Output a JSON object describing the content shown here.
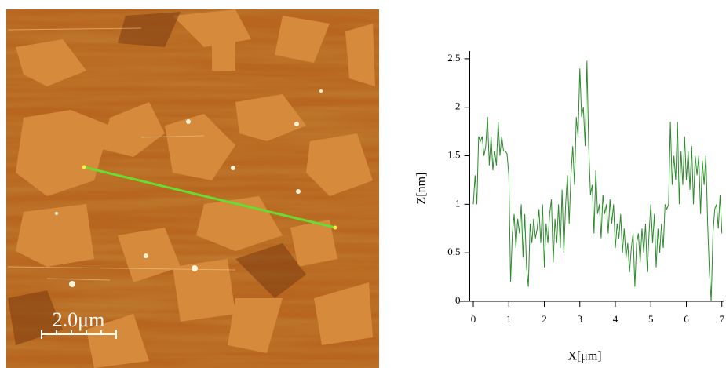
{
  "image": {
    "scale_bar": "2.0μm"
  },
  "chart_data": {
    "type": "line",
    "x_label": "X[μm]",
    "y_label": "Z[nm]",
    "color": "#2e8b2e",
    "x": [
      0,
      0.05,
      0.1,
      0.15,
      0.2,
      0.25,
      0.3,
      0.35,
      0.4,
      0.45,
      0.5,
      0.55,
      0.6,
      0.65,
      0.7,
      0.75,
      0.8,
      0.85,
      0.9,
      0.95,
      1.0,
      1.05,
      1.1,
      1.15,
      1.2,
      1.25,
      1.3,
      1.35,
      1.4,
      1.45,
      1.5,
      1.55,
      1.6,
      1.65,
      1.7,
      1.75,
      1.8,
      1.85,
      1.9,
      1.95,
      2.0,
      2.05,
      2.1,
      2.15,
      2.2,
      2.25,
      2.3,
      2.35,
      2.4,
      2.45,
      2.5,
      2.55,
      2.6,
      2.65,
      2.7,
      2.75,
      2.8,
      2.85,
      2.9,
      2.95,
      3.0,
      3.05,
      3.1,
      3.15,
      3.2,
      3.25,
      3.3,
      3.35,
      3.4,
      3.45,
      3.5,
      3.55,
      3.6,
      3.65,
      3.7,
      3.75,
      3.8,
      3.85,
      3.9,
      3.95,
      4.0,
      4.05,
      4.1,
      4.15,
      4.2,
      4.25,
      4.3,
      4.35,
      4.4,
      4.45,
      4.5,
      4.55,
      4.6,
      4.65,
      4.7,
      4.75,
      4.8,
      4.85,
      4.9,
      4.95,
      5.0,
      5.05,
      5.1,
      5.15,
      5.2,
      5.25,
      5.3,
      5.35,
      5.4,
      5.45,
      5.5,
      5.55,
      5.6,
      5.65,
      5.7,
      5.75,
      5.8,
      5.85,
      5.9,
      5.95,
      6.0,
      6.05,
      6.1,
      6.15,
      6.2,
      6.25,
      6.3,
      6.35,
      6.4,
      6.45,
      6.5,
      6.55,
      6.6,
      6.65,
      6.7,
      6.75,
      6.8,
      6.85,
      6.9,
      6.95,
      7.0
    ],
    "values": [
      1.0,
      1.3,
      1.0,
      1.7,
      1.65,
      1.7,
      1.5,
      1.6,
      1.9,
      1.4,
      1.7,
      1.35,
      1.55,
      1.4,
      1.85,
      1.5,
      1.7,
      1.55,
      1.55,
      1.52,
      1.3,
      0.2,
      0.7,
      0.9,
      0.55,
      0.85,
      0.7,
      1.0,
      0.45,
      0.9,
      0.35,
      0.15,
      0.8,
      0.6,
      0.85,
      0.65,
      0.75,
      0.95,
      0.6,
      1.0,
      0.35,
      0.8,
      0.6,
      0.9,
      1.05,
      0.4,
      0.85,
      0.6,
      1.0,
      0.55,
      1.15,
      0.5,
      1.0,
      1.3,
      0.8,
      1.3,
      1.6,
      1.2,
      1.9,
      1.7,
      2.4,
      1.9,
      2.0,
      1.6,
      2.48,
      1.6,
      1.1,
      1.2,
      0.7,
      1.35,
      0.9,
      1.0,
      0.65,
      1.1,
      0.9,
      1.0,
      0.7,
      1.05,
      0.8,
      1.0,
      0.55,
      0.8,
      0.65,
      0.9,
      0.5,
      0.75,
      0.45,
      0.6,
      0.3,
      0.55,
      0.7,
      0.15,
      0.6,
      0.7,
      0.4,
      0.75,
      0.5,
      0.8,
      0.3,
      0.7,
      1.0,
      0.6,
      0.9,
      0.35,
      0.75,
      0.5,
      0.8,
      0.55,
      1.0,
      0.95,
      1.0,
      1.85,
      1.2,
      1.5,
      1.25,
      1.85,
      1.0,
      1.55,
      1.2,
      1.7,
      1.25,
      1.55,
      1.15,
      1.6,
      1.0,
      1.5,
      1.3,
      1.5,
      0.9,
      1.45,
      1.2,
      1.5,
      0.8,
      0.3,
      0.0,
      0.7,
      0.95,
      1.0,
      0.75,
      1.1,
      0.7
    ],
    "xlim": [
      -0.1,
      7.05
    ],
    "ylim": [
      0,
      2.58
    ],
    "xticks": [
      0,
      1,
      2,
      3,
      4,
      5,
      6,
      7
    ],
    "yticks": [
      0,
      0.5,
      1,
      1.5,
      2,
      2.5
    ]
  }
}
